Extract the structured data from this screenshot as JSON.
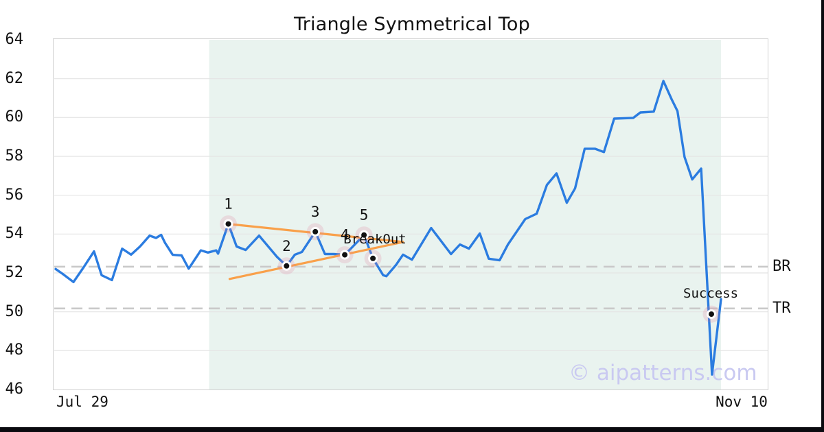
{
  "title": "Triangle Symmetrical Top",
  "watermark": "© aipatterns.com",
  "colors": {
    "price_line": "#2b7ce0",
    "trendline": "#f9a04a",
    "marker_halo": "rgba(221,130,158,0.22)",
    "marker_ring": "#ffffff",
    "marker_dot": "#111111",
    "grid": "#e4e4e4",
    "plot_border": "#d2d2d2",
    "dashed_level": "#c9c9c9",
    "highlight_region": "#e9f3ef",
    "watermark_color": "#c9c9f1",
    "text": "#111111",
    "edge_bar": "#0a0a0f"
  },
  "chart_data": {
    "type": "line",
    "title": "Triangle Symmetrical Top",
    "x_axis": {
      "tick_labels": [
        "Jul 29",
        "Nov 10"
      ],
      "tick_days": [
        0,
        104
      ],
      "domain_days": [
        -0.21,
        111.3
      ],
      "unit": "days from first tick"
    },
    "y_axis": {
      "ticks": [
        46,
        48,
        50,
        52,
        54,
        56,
        58,
        60,
        62,
        64
      ],
      "range": [
        46,
        64
      ],
      "grid": true
    },
    "series": [
      {
        "name": "price",
        "points": [
          [
            0,
            52.2
          ],
          [
            1.1,
            51.95
          ],
          [
            2.8,
            51.53
          ],
          [
            4.4,
            52.3
          ],
          [
            6.0,
            53.11
          ],
          [
            7.2,
            51.88
          ],
          [
            8.8,
            51.63
          ],
          [
            10.4,
            53.25
          ],
          [
            11.8,
            52.94
          ],
          [
            13.2,
            53.36
          ],
          [
            14.7,
            53.92
          ],
          [
            15.7,
            53.8
          ],
          [
            16.5,
            53.96
          ],
          [
            17.1,
            53.55
          ],
          [
            18.3,
            52.93
          ],
          [
            19.7,
            52.9
          ],
          [
            20.8,
            52.22
          ],
          [
            22.7,
            53.16
          ],
          [
            23.8,
            53.05
          ],
          [
            25.1,
            53.16
          ],
          [
            25.4,
            52.99
          ],
          [
            27.0,
            54.52
          ],
          [
            28.3,
            53.36
          ],
          [
            29.7,
            53.18
          ],
          [
            31.8,
            53.92
          ],
          [
            34.6,
            52.83
          ],
          [
            36.1,
            52.36
          ],
          [
            37.4,
            52.94
          ],
          [
            38.5,
            53.08
          ],
          [
            40.6,
            54.12
          ],
          [
            42.1,
            52.97
          ],
          [
            43.5,
            52.97
          ],
          [
            45.2,
            52.93
          ],
          [
            48.2,
            53.95
          ],
          [
            49.6,
            52.75
          ],
          [
            51.2,
            51.88
          ],
          [
            51.7,
            51.83
          ],
          [
            53.2,
            52.41
          ],
          [
            54.3,
            52.94
          ],
          [
            55.7,
            52.68
          ],
          [
            58.7,
            54.31
          ],
          [
            61.8,
            52.97
          ],
          [
            63.2,
            53.46
          ],
          [
            64.6,
            53.25
          ],
          [
            66.3,
            54.03
          ],
          [
            67.7,
            52.73
          ],
          [
            69.4,
            52.65
          ],
          [
            70.7,
            53.46
          ],
          [
            73.4,
            54.77
          ],
          [
            75.2,
            55.05
          ],
          [
            76.8,
            56.53
          ],
          [
            78.3,
            57.12
          ],
          [
            79.9,
            55.61
          ],
          [
            81.2,
            56.35
          ],
          [
            82.7,
            58.39
          ],
          [
            84.3,
            58.39
          ],
          [
            85.7,
            58.22
          ],
          [
            87.3,
            59.94
          ],
          [
            90.3,
            59.98
          ],
          [
            91.4,
            60.26
          ],
          [
            93.5,
            60.3
          ],
          [
            95.0,
            61.88
          ],
          [
            96.3,
            60.93
          ],
          [
            97.2,
            60.33
          ],
          [
            98.3,
            57.97
          ],
          [
            99.5,
            56.81
          ],
          [
            100.9,
            57.37
          ],
          [
            102.6,
            46.77
          ],
          [
            104.0,
            50.65
          ]
        ]
      }
    ],
    "pattern_points": [
      {
        "label": "1",
        "day": 27.0,
        "value": 54.52
      },
      {
        "label": "2",
        "day": 36.1,
        "value": 52.36
      },
      {
        "label": "3",
        "day": 40.6,
        "value": 54.12
      },
      {
        "label": "4",
        "day": 45.2,
        "value": 52.93
      },
      {
        "label": "5",
        "day": 48.2,
        "value": 53.95
      }
    ],
    "breakout_point": {
      "day": 49.6,
      "value": 52.75
    },
    "success_point": {
      "day": 102.5,
      "value": 49.88
    },
    "trendlines": [
      {
        "name": "upper",
        "from": [
          27.0,
          54.52
        ],
        "to": [
          54.3,
          53.59
        ]
      },
      {
        "name": "lower",
        "from": [
          27.2,
          51.69
        ],
        "to": [
          54.3,
          53.59
        ]
      }
    ],
    "levels": [
      {
        "label": "BR",
        "value": 52.32
      },
      {
        "label": "TR",
        "value": 50.17
      }
    ],
    "highlight_region": {
      "start_day": 24.0,
      "end_day": 104.0
    },
    "annotations": [
      {
        "text": "BreakOut",
        "day": 45.0,
        "value": 53.77,
        "anchor": "start"
      },
      {
        "text": "Success",
        "day": 102.4,
        "value": 50.98,
        "anchor": "middle"
      }
    ],
    "legend": null
  }
}
